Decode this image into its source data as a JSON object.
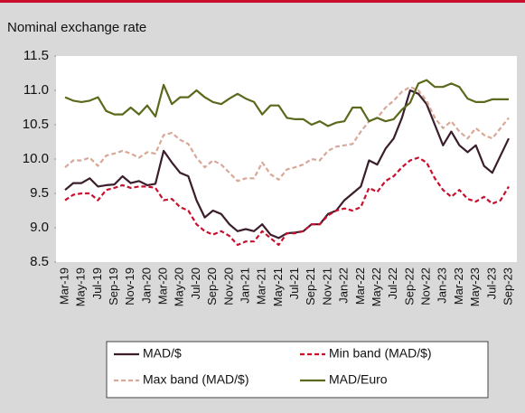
{
  "chart_data": {
    "type": "line",
    "title": "Nominal exchange rate",
    "categories": [
      "Mar-19",
      null,
      "May-19",
      null,
      "Jul-19",
      null,
      "Sep-19",
      null,
      "Nov-19",
      null,
      "Jan-20",
      null,
      "Mar-20",
      null,
      "May-20",
      null,
      "Jul-20",
      null,
      "Sep-20",
      null,
      "Nov-20",
      null,
      "Jan-21",
      null,
      "Mar-21",
      null,
      "May-21",
      null,
      "Jul-21",
      null,
      "Sep-21",
      null,
      "Nov-21",
      null,
      "Jan-22",
      null,
      "Mar-22",
      null,
      "May-22",
      null,
      "Jul-22",
      null,
      "Sep-22",
      null,
      "Nov-22",
      null,
      "Jan-23",
      null,
      "Mar-23",
      null,
      "May-23",
      null,
      "Jul-23",
      null,
      "Sep-23"
    ],
    "series": [
      {
        "name": "MAD/$",
        "color": "#3b1e2c",
        "dashed": false,
        "values": [
          9.55,
          9.65,
          9.65,
          9.72,
          9.6,
          9.62,
          9.63,
          9.75,
          9.65,
          9.68,
          9.62,
          9.64,
          10.12,
          9.95,
          9.8,
          9.75,
          9.4,
          9.15,
          9.25,
          9.2,
          9.05,
          8.95,
          8.98,
          8.95,
          9.05,
          8.9,
          8.85,
          8.92,
          8.93,
          8.95,
          9.05,
          9.05,
          9.2,
          9.25,
          9.4,
          9.5,
          9.6,
          9.98,
          9.92,
          10.15,
          10.3,
          10.6,
          11.0,
          10.95,
          10.8,
          10.5,
          10.2,
          10.4,
          10.2,
          10.1,
          10.2,
          9.9,
          9.8,
          10.05,
          10.3
        ]
      },
      {
        "name": "Min band (MAD/$)",
        "color": "#c8102e",
        "dashed": true,
        "values": [
          9.4,
          9.48,
          9.5,
          9.5,
          9.4,
          9.55,
          9.58,
          9.62,
          9.58,
          9.6,
          9.6,
          9.58,
          9.4,
          9.42,
          9.3,
          9.25,
          9.05,
          8.95,
          8.9,
          8.95,
          8.88,
          8.75,
          8.8,
          8.8,
          8.95,
          8.85,
          8.75,
          8.92,
          8.92,
          8.95,
          9.05,
          9.05,
          9.18,
          9.25,
          9.28,
          9.25,
          9.3,
          9.58,
          9.52,
          9.68,
          9.75,
          9.88,
          9.98,
          10.02,
          9.95,
          9.72,
          9.55,
          9.45,
          9.55,
          9.42,
          9.38,
          9.45,
          9.35,
          9.4,
          9.6
        ]
      },
      {
        "name": "Max band (MAD/$)",
        "color": "#d8a898",
        "dashed": true,
        "values": [
          9.88,
          9.98,
          9.98,
          10.02,
          9.9,
          10.05,
          10.08,
          10.12,
          10.08,
          10.02,
          10.1,
          10.08,
          10.35,
          10.38,
          10.28,
          10.22,
          10.02,
          9.88,
          9.98,
          9.92,
          9.8,
          9.68,
          9.72,
          9.72,
          9.95,
          9.78,
          9.7,
          9.85,
          9.88,
          9.92,
          10.0,
          9.98,
          10.12,
          10.18,
          10.2,
          10.22,
          10.4,
          10.55,
          10.6,
          10.75,
          10.85,
          10.98,
          11.05,
          11.0,
          10.85,
          10.6,
          10.45,
          10.55,
          10.4,
          10.3,
          10.45,
          10.35,
          10.3,
          10.45,
          10.6
        ]
      },
      {
        "name": "MAD/Euro",
        "color": "#5a6a1c",
        "dashed": false,
        "values": [
          10.9,
          10.85,
          10.83,
          10.85,
          10.9,
          10.7,
          10.65,
          10.65,
          10.75,
          10.65,
          10.78,
          10.62,
          11.08,
          10.8,
          10.9,
          10.9,
          11.0,
          10.9,
          10.83,
          10.8,
          10.88,
          10.95,
          10.88,
          10.83,
          10.65,
          10.78,
          10.78,
          10.6,
          10.58,
          10.58,
          10.5,
          10.55,
          10.48,
          10.53,
          10.55,
          10.75,
          10.75,
          10.55,
          10.6,
          10.55,
          10.58,
          10.72,
          10.82,
          11.1,
          11.15,
          11.05,
          11.05,
          11.1,
          11.05,
          10.88,
          10.83,
          10.83,
          10.87,
          10.87,
          10.87
        ]
      }
    ],
    "ylim": [
      8.5,
      11.5
    ],
    "yticks": [
      {
        "value": 8.5,
        "label": "8.5"
      },
      {
        "value": 9,
        "label": "9.0"
      },
      {
        "value": 9.5,
        "label": "9.5"
      },
      {
        "value": 10,
        "label": "10.0"
      },
      {
        "value": 10.5,
        "label": "10.5"
      },
      {
        "value": 11,
        "label": "11.0"
      },
      {
        "value": 11.5,
        "label": "11.5"
      }
    ],
    "grid": false,
    "legend": "bottom"
  }
}
